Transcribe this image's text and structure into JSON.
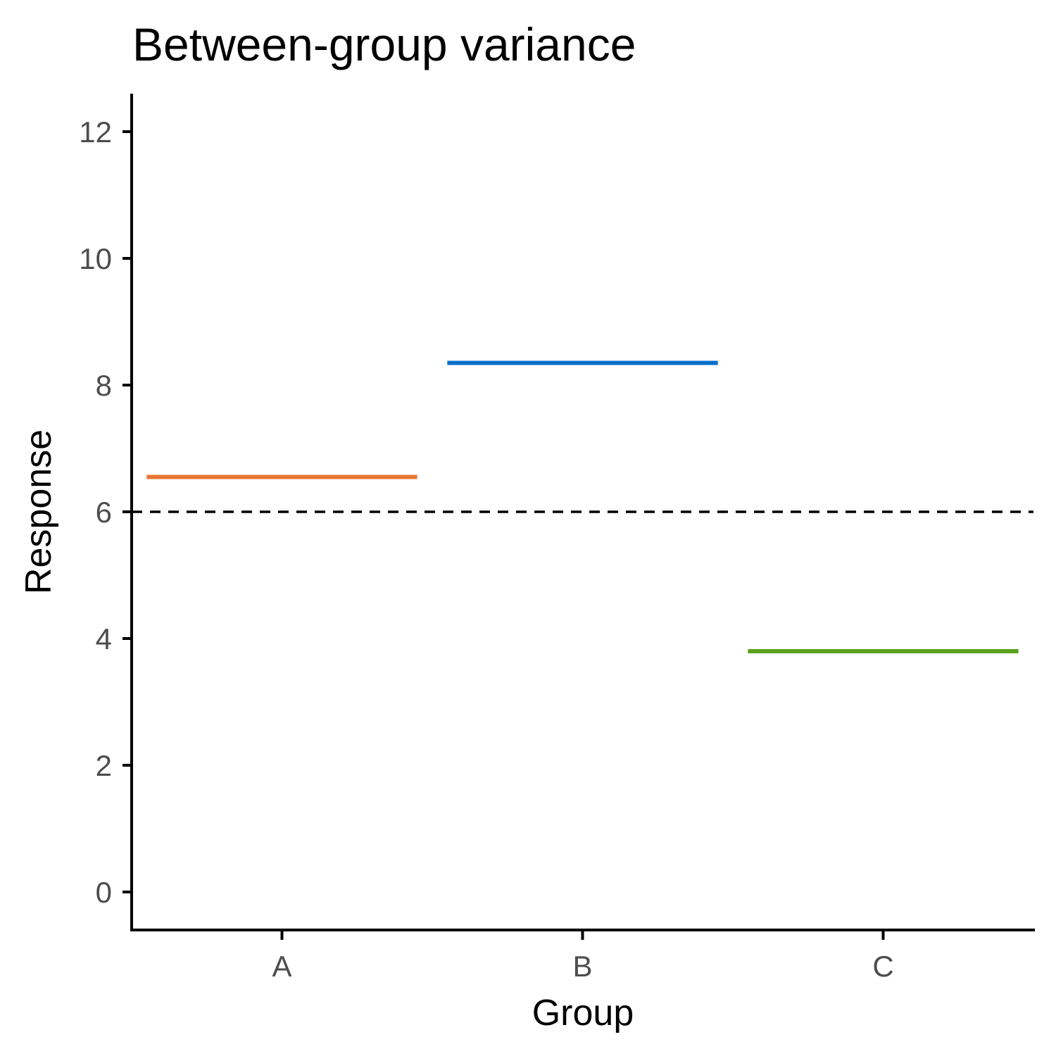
{
  "chart_data": {
    "type": "line",
    "title": "Between-group variance",
    "xlabel": "Group",
    "ylabel": "Response",
    "categories": [
      "A",
      "B",
      "C"
    ],
    "y_ticks": [
      "0",
      "2",
      "4",
      "6",
      "8",
      "10",
      "12"
    ],
    "ylim": [
      -0.6,
      12.6
    ],
    "grid": false,
    "legend": "none",
    "group_means": [
      {
        "category": "A",
        "value": 6.55,
        "color": "#E87531"
      },
      {
        "category": "B",
        "value": 8.35,
        "color": "#0A6FC8"
      },
      {
        "category": "C",
        "value": 3.8,
        "color": "#5BA21E"
      }
    ],
    "reference_line": {
      "value": 6.0,
      "style": "dashed",
      "color": "#000000"
    }
  }
}
